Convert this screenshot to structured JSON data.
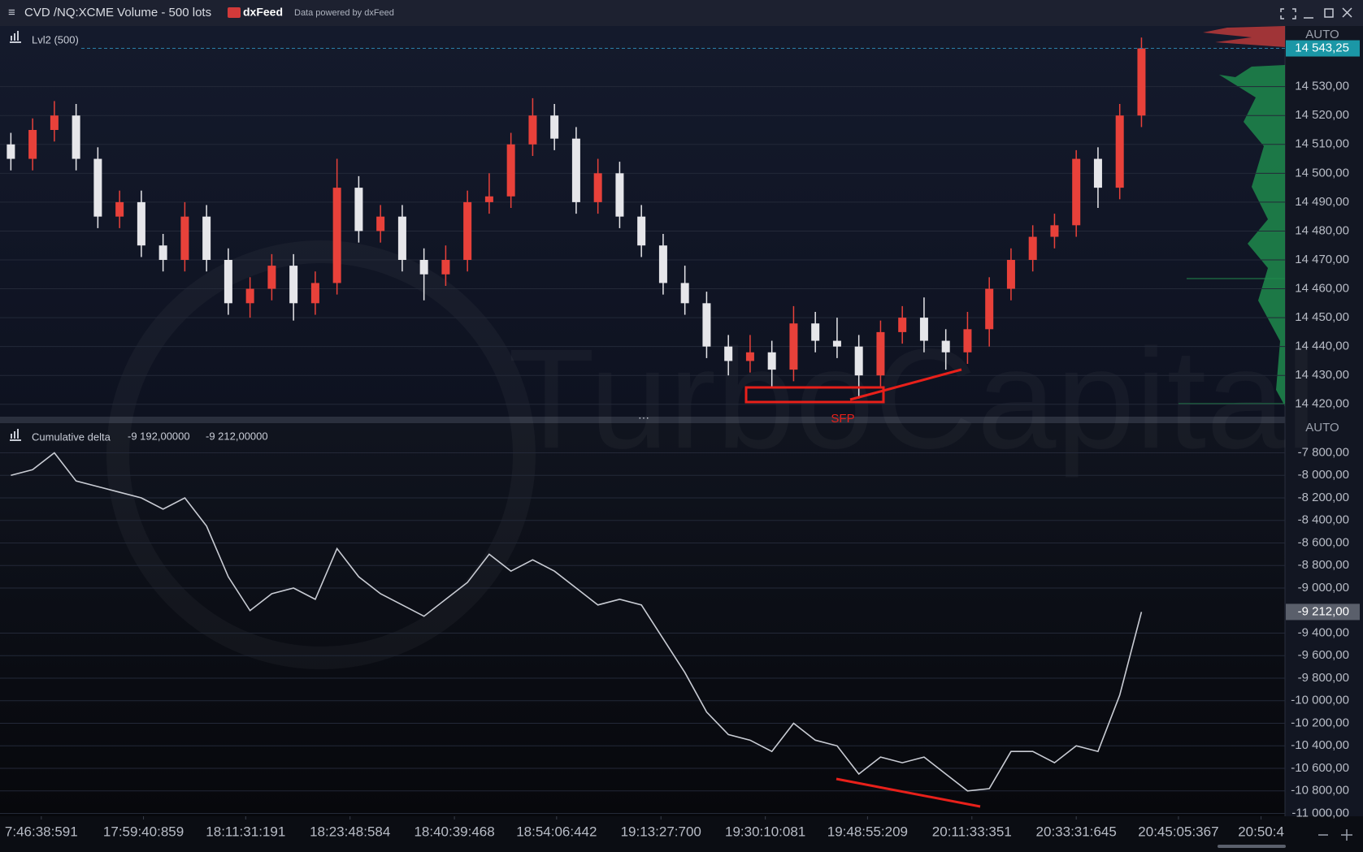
{
  "header": {
    "title": "CVD /NQ:XCME Volume - 500 lots",
    "brand": "dxFeed",
    "powered": "Data powered by dxFeed"
  },
  "watermark": "TurboCapital",
  "chart_data": [
    {
      "type": "candlestick",
      "legend": "Lvl2 (500)",
      "scale_mode": "AUTO",
      "annotation": "SFP",
      "up_color": "#e8413a",
      "down_color": "#e6e6ea",
      "xlim": [
        -0.5,
        58.6
      ],
      "ylim": [
        14416,
        14551
      ],
      "x": [
        0,
        1,
        2,
        3,
        4,
        5,
        6,
        7,
        8,
        9,
        10,
        11,
        12,
        13,
        14,
        15,
        16,
        17,
        18,
        19,
        20,
        21,
        22,
        23,
        24,
        25,
        26,
        27,
        28,
        29,
        30,
        31,
        32,
        33,
        34,
        35,
        36,
        37,
        38,
        39,
        40,
        41,
        42,
        43,
        44,
        45,
        46,
        47,
        48,
        49,
        50,
        51,
        52
      ],
      "open": [
        14510,
        14505,
        14515,
        14520,
        14505,
        14485,
        14490,
        14475,
        14470,
        14485,
        14470,
        14455,
        14460,
        14468,
        14455,
        14462,
        14495,
        14480,
        14485,
        14470,
        14465,
        14470,
        14490,
        14492,
        14510,
        14520,
        14512,
        14490,
        14500,
        14485,
        14475,
        14462,
        14455,
        14440,
        14435,
        14438,
        14432,
        14448,
        14442,
        14440,
        14430,
        14445,
        14450,
        14442,
        14438,
        14446,
        14460,
        14470,
        14478,
        14482,
        14505,
        14495,
        14520
      ],
      "high": [
        14514,
        14519,
        14525,
        14524,
        14509,
        14494,
        14494,
        14479,
        14490,
        14489,
        14474,
        14464,
        14472,
        14472,
        14466,
        14505,
        14499,
        14489,
        14489,
        14474,
        14475,
        14494,
        14500,
        14514,
        14526,
        14524,
        14516,
        14505,
        14504,
        14489,
        14479,
        14468,
        14459,
        14444,
        14444,
        14442,
        14454,
        14452,
        14450,
        14444,
        14449,
        14454,
        14457,
        14446,
        14452,
        14464,
        14474,
        14482,
        14486,
        14508,
        14509,
        14524,
        14547
      ],
      "low": [
        14501,
        14501,
        14511,
        14501,
        14481,
        14481,
        14471,
        14466,
        14466,
        14466,
        14451,
        14450,
        14456,
        14449,
        14451,
        14458,
        14476,
        14476,
        14466,
        14456,
        14461,
        14466,
        14486,
        14488,
        14506,
        14508,
        14486,
        14486,
        14481,
        14471,
        14458,
        14451,
        14436,
        14430,
        14431,
        14426,
        14428,
        14438,
        14436,
        14422,
        14426,
        14441,
        14438,
        14432,
        14434,
        14440,
        14456,
        14466,
        14474,
        14478,
        14488,
        14491,
        14516
      ],
      "close": [
        14505,
        14515,
        14520,
        14505,
        14485,
        14490,
        14475,
        14470,
        14485,
        14470,
        14455,
        14460,
        14468,
        14455,
        14462,
        14495,
        14480,
        14485,
        14470,
        14465,
        14470,
        14490,
        14492,
        14510,
        14520,
        14512,
        14490,
        14500,
        14485,
        14475,
        14462,
        14455,
        14440,
        14435,
        14438,
        14432,
        14448,
        14442,
        14440,
        14430,
        14445,
        14450,
        14442,
        14438,
        14446,
        14460,
        14470,
        14478,
        14482,
        14505,
        14495,
        14520,
        14543.25
      ],
      "last": {
        "value": 14543.25,
        "label": "14 543,25"
      },
      "yticks": [
        {
          "value": 14420,
          "label": "14 420,00"
        },
        {
          "value": 14430,
          "label": "14 430,00"
        },
        {
          "value": 14440,
          "label": "14 440,00"
        },
        {
          "value": 14450,
          "label": "14 450,00"
        },
        {
          "value": 14460,
          "label": "14 460,00"
        },
        {
          "value": 14470,
          "label": "14 470,00"
        },
        {
          "value": 14480,
          "label": "14 480,00"
        },
        {
          "value": 14490,
          "label": "14 490,00"
        },
        {
          "value": 14500,
          "label": "14 500,00"
        },
        {
          "value": 14510,
          "label": "14 510,00"
        },
        {
          "value": 14520,
          "label": "14 520,00"
        },
        {
          "value": 14530,
          "label": "14 530,00"
        }
      ]
    },
    {
      "type": "line",
      "legend": "Cumulative delta",
      "legend_values": [
        "-9 192,00000",
        "-9 212,00000"
      ],
      "scale_mode": "AUTO",
      "xlim": [
        -0.5,
        58.6
      ],
      "ylim": [
        -11025,
        -7537
      ],
      "x": [
        0,
        1,
        2,
        3,
        4,
        5,
        6,
        7,
        8,
        9,
        10,
        11,
        12,
        13,
        14,
        15,
        16,
        17,
        18,
        19,
        20,
        21,
        22,
        23,
        24,
        25,
        26,
        27,
        28,
        29,
        30,
        31,
        32,
        33,
        34,
        35,
        36,
        37,
        38,
        39,
        40,
        41,
        42,
        43,
        44,
        45,
        46,
        47,
        48,
        49,
        50,
        51,
        52
      ],
      "series": [
        {
          "name": "Cumulative delta",
          "color": "#c9ccd4",
          "values": [
            -8000,
            -7950,
            -7800,
            -8050,
            -8100,
            -8150,
            -8200,
            -8300,
            -8200,
            -8450,
            -8900,
            -9200,
            -9050,
            -9000,
            -9100,
            -8650,
            -8900,
            -9050,
            -9150,
            -9250,
            -9100,
            -8950,
            -8700,
            -8850,
            -8750,
            -8850,
            -9000,
            -9150,
            -9100,
            -9150,
            -9450,
            -9750,
            -10100,
            -10300,
            -10350,
            -10450,
            -10200,
            -10350,
            -10400,
            -10650,
            -10500,
            -10550,
            -10500,
            -10650,
            -10800,
            -10780,
            -10450,
            -10450,
            -10550,
            -10400,
            -10450,
            -9950,
            -9212
          ]
        }
      ],
      "last": {
        "value": -9212,
        "label": "-9 212,00"
      },
      "yticks": [
        {
          "value": -7800,
          "label": "-7 800,00"
        },
        {
          "value": -8000,
          "label": "-8 000,00"
        },
        {
          "value": -8200,
          "label": "-8 200,00"
        },
        {
          "value": -8400,
          "label": "-8 400,00"
        },
        {
          "value": -8600,
          "label": "-8 600,00"
        },
        {
          "value": -8800,
          "label": "-8 800,00"
        },
        {
          "value": -9000,
          "label": "-9 000,00"
        },
        {
          "value": -9400,
          "label": "-9 400,00"
        },
        {
          "value": -9600,
          "label": "-9 600,00"
        },
        {
          "value": -9800,
          "label": "-9 800,00"
        },
        {
          "value": -10000,
          "label": "-10 000,00"
        },
        {
          "value": -10200,
          "label": "-10 200,00"
        },
        {
          "value": -10400,
          "label": "-10 400,00"
        },
        {
          "value": -10600,
          "label": "-10 600,00"
        },
        {
          "value": -10800,
          "label": "-10 800,00"
        },
        {
          "value": -11000,
          "label": "-11 000,00"
        }
      ],
      "xticks": [
        {
          "value": 1.4,
          "label": "7:46:38:591"
        },
        {
          "value": 6.1,
          "label": "17:59:40:859"
        },
        {
          "value": 10.8,
          "label": "18:11:31:191"
        },
        {
          "value": 15.6,
          "label": "18:23:48:584"
        },
        {
          "value": 20.4,
          "label": "18:40:39:468"
        },
        {
          "value": 25.1,
          "label": "18:54:06:442"
        },
        {
          "value": 29.9,
          "label": "19:13:27:700"
        },
        {
          "value": 34.7,
          "label": "19:30:10:081"
        },
        {
          "value": 39.4,
          "label": "19:48:55:209"
        },
        {
          "value": 44.2,
          "label": "20:11:33:351"
        },
        {
          "value": 49.0,
          "label": "20:33:31:645"
        },
        {
          "value": 53.7,
          "label": "20:45:05:367"
        },
        {
          "value": 57.5,
          "label": "20:50:4"
        }
      ]
    }
  ]
}
